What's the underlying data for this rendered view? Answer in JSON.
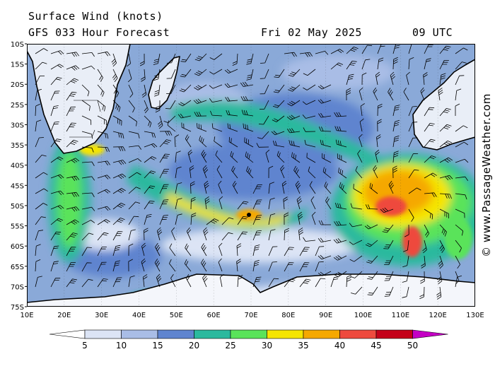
{
  "header": {
    "title": "Surface Wind (knots)",
    "model": "GFS 033 Hour Forecast",
    "date": "Fri 02 May 2025",
    "time": "09 UTC"
  },
  "credit": "© www.PassageWeather.com",
  "map": {
    "lat_labels": [
      "10S",
      "15S",
      "20S",
      "25S",
      "30S",
      "35S",
      "40S",
      "45S",
      "50S",
      "55S",
      "60S",
      "65S",
      "70S",
      "75S"
    ],
    "lon_labels": [
      "10E",
      "20E",
      "30E",
      "40E",
      "50E",
      "60E",
      "70E",
      "80E",
      "90E",
      "100E",
      "110E",
      "120E",
      "130E"
    ],
    "ocean_color": "#8aa9d8",
    "land_color": "#ffffff"
  },
  "legend": {
    "labels": [
      "5",
      "10",
      "15",
      "20",
      "25",
      "30",
      "35",
      "40",
      "45",
      "50"
    ],
    "colors": [
      "#ffffff",
      "#dce4f5",
      "#a9bde6",
      "#5f84cf",
      "#2bb99e",
      "#5ae35a",
      "#f5e500",
      "#f5a800",
      "#ee4a3e",
      "#c4001a",
      "#c400c4"
    ]
  }
}
